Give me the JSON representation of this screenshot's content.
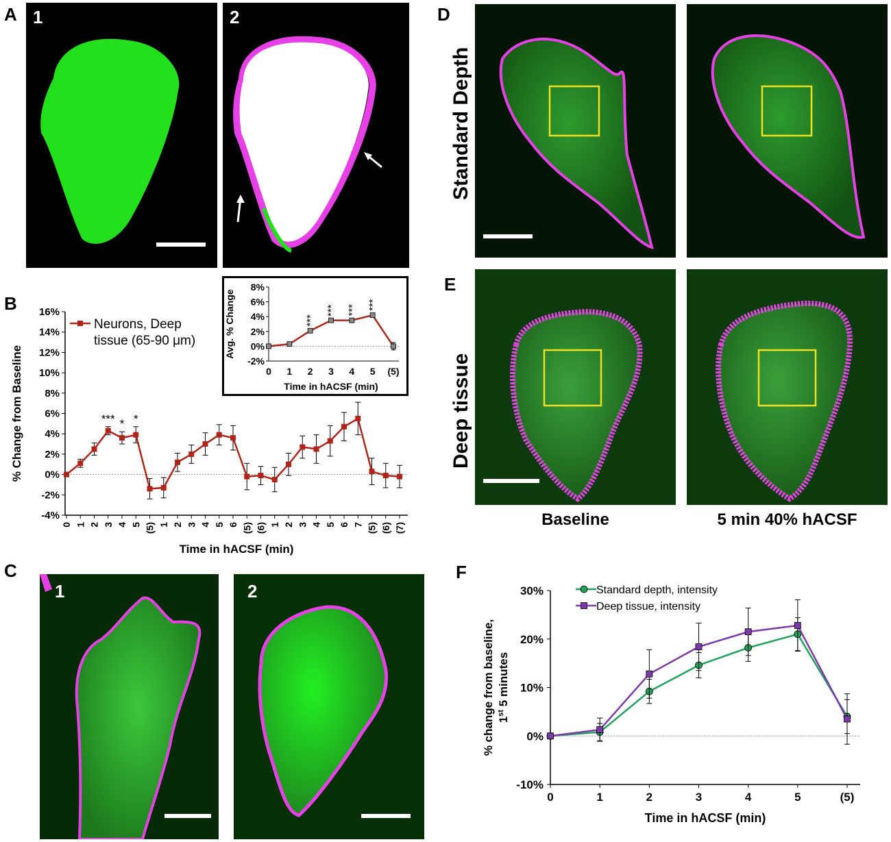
{
  "panels": {
    "A": {
      "letter": "A",
      "sub1": "1",
      "sub2": "2"
    },
    "B": {
      "letter": "B"
    },
    "C": {
      "letter": "C",
      "sub1": "1",
      "sub2": "2"
    },
    "D": {
      "letter": "D",
      "row_label": "Standard Depth"
    },
    "E": {
      "letter": "E",
      "row_label": "Deep tissue",
      "col1": "Baseline",
      "col2": "5 min 40% hACSF"
    },
    "F": {
      "letter": "F"
    }
  },
  "colors": {
    "green": "#22e01c",
    "magenta": "#e640e6",
    "yellow": "#f0e020",
    "darkred": "#b0241a",
    "greenline": "#1fa35a",
    "purple": "#7a3aa8"
  },
  "chart_data": [
    {
      "id": "B-main",
      "type": "line",
      "title": "",
      "xlabel": "Time in hACSF  (min)",
      "ylabel": "% Change from Baseline",
      "ylim": [
        -4,
        16
      ],
      "y_ticks": [
        "-4%",
        "-2%",
        "0%",
        "2%",
        "4%",
        "6%",
        "8%",
        "10%",
        "12%",
        "14%",
        "16%"
      ],
      "categories": [
        "0",
        "1",
        "2",
        "3",
        "4",
        "5",
        "(5)",
        "1",
        "2",
        "3",
        "4",
        "5",
        "6",
        "(5)",
        "(6)",
        "1",
        "2",
        "3",
        "4",
        "5",
        "6",
        "7",
        "(5)",
        "(6)",
        "(7)"
      ],
      "series": [
        {
          "name": "Neurons, Deep tissue (65-90 μm)",
          "values": [
            0,
            1.1,
            2.5,
            4.3,
            3.6,
            3.9,
            -1.4,
            -1.3,
            1.2,
            2.0,
            3.0,
            3.9,
            3.6,
            -0.2,
            -0.1,
            -0.5,
            1.0,
            2.7,
            2.5,
            3.3,
            4.7,
            5.5,
            0.3,
            -0.1,
            -0.2
          ],
          "errors": [
            0,
            0.4,
            0.6,
            0.4,
            0.6,
            0.8,
            1.0,
            1.0,
            0.9,
            0.9,
            1.1,
            1.0,
            1.2,
            1.3,
            0.9,
            1.2,
            1.1,
            1.1,
            1.4,
            1.5,
            1.4,
            1.6,
            1.3,
            1.2,
            1.1
          ]
        }
      ],
      "legend": [
        "Neurons, Deep",
        "tissue (65-90 μm)"
      ],
      "annotations": [
        {
          "index": 3,
          "text": "***"
        },
        {
          "index": 4,
          "text": "*"
        },
        {
          "index": 5,
          "text": "*"
        }
      ]
    },
    {
      "id": "B-inset",
      "type": "line",
      "xlabel": "Time in hACSF (min)",
      "ylabel": "Avg. % Change",
      "ylim": [
        -2,
        8
      ],
      "y_ticks": [
        "-2%",
        "0%",
        "2%",
        "4%",
        "6%",
        "8%"
      ],
      "categories": [
        "0",
        "1",
        "2",
        "3",
        "4",
        "5",
        "(5)"
      ],
      "series": [
        {
          "name": "Avg. % Change",
          "values": [
            0,
            0.3,
            2.1,
            3.5,
            3.5,
            4.2,
            0.0
          ],
          "errors": [
            0,
            0.15,
            0.2,
            0.15,
            0.2,
            0.2,
            0.5
          ]
        }
      ],
      "annotations": [
        {
          "index": 2,
          "text": "***"
        },
        {
          "index": 3,
          "text": "***"
        },
        {
          "index": 4,
          "text": "***"
        },
        {
          "index": 5,
          "text": "***"
        }
      ]
    },
    {
      "id": "F",
      "type": "line",
      "xlabel": "Time in hACSF  (min)",
      "ylabel_line1": "% change from baseline,",
      "ylabel_line2_a": "1",
      "ylabel_line2_sup": "st",
      "ylabel_line2_b": " 5 minutes",
      "ylim": [
        -10,
        30
      ],
      "y_ticks": [
        "-10%",
        "0%",
        "10%",
        "20%",
        "30%"
      ],
      "categories": [
        "0",
        "1",
        "2",
        "3",
        "4",
        "5",
        "(5)"
      ],
      "series": [
        {
          "name": "Standard depth, intensity",
          "values": [
            0,
            0.8,
            9.2,
            14.6,
            18.2,
            21.0,
            4.0
          ],
          "errors": [
            0,
            1.8,
            2.5,
            2.6,
            2.8,
            3.4,
            3.5
          ]
        },
        {
          "name": "Deep tissue, intensity",
          "values": [
            0,
            1.3,
            12.8,
            18.4,
            21.5,
            22.8,
            3.5
          ],
          "errors": [
            0,
            2.4,
            5.0,
            4.9,
            4.9,
            5.3,
            5.2
          ]
        }
      ]
    }
  ]
}
